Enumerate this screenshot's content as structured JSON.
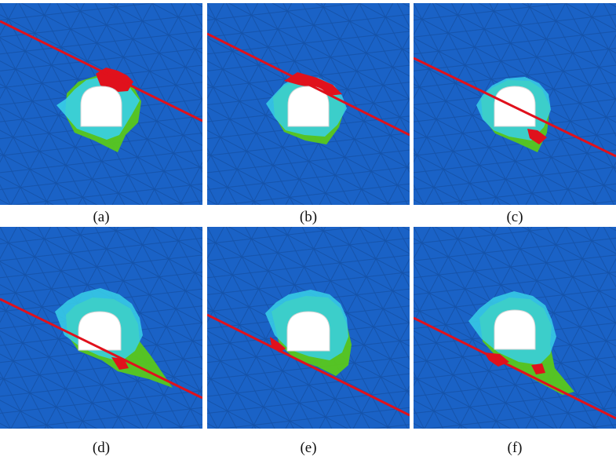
{
  "figure": {
    "colors": {
      "intact": "#1a62c6",
      "mesh_line": "#0f3f86",
      "minor_damage": "#38d0e8",
      "moderate_damage": "#59c81c",
      "severe_damage": "#e0111c",
      "fault_line": "#e0111c",
      "opening": "#ffffff"
    },
    "panels": [
      {
        "id": "a",
        "label": "(a)"
      },
      {
        "id": "b",
        "label": "(b)"
      },
      {
        "id": "c",
        "label": "(c)"
      },
      {
        "id": "d",
        "label": "(d)"
      },
      {
        "id": "e",
        "label": "(e)"
      },
      {
        "id": "f",
        "label": "(f)"
      }
    ]
  }
}
